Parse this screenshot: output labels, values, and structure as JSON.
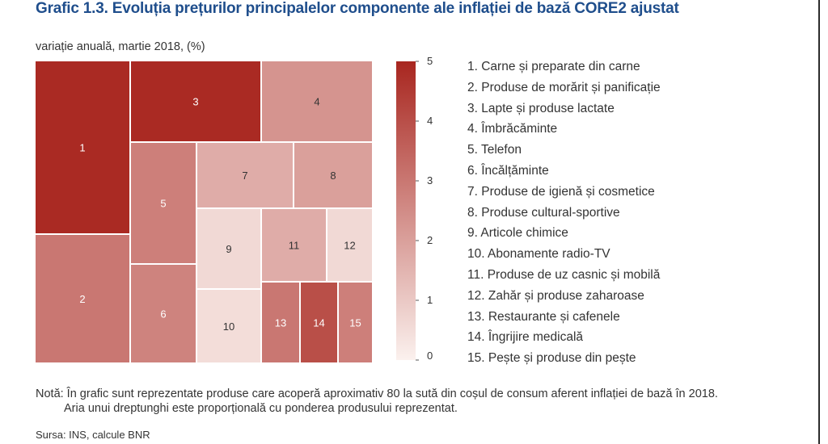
{
  "title": "Grafic 1.3. Evoluția prețurilor principalelor componente ale inflației de bază CORE2 ajustat",
  "subtitle": "variație anuală, martie 2018, (%)",
  "chart_data": {
    "type": "treemap",
    "title": "Grafic 1.3. Evoluția prețurilor principalelor componente ale inflației de bază CORE2 ajustat",
    "ylabel": "variație anuală, martie 2018, (%)",
    "colorscale": {
      "min": 0,
      "max": 5,
      "ticks": [
        0,
        1,
        2,
        3,
        4,
        5
      ],
      "low_color": "#fbf1ee",
      "high_color": "#a8261f"
    },
    "cells": [
      {
        "id": 1,
        "name": "Carne și preparate din carne",
        "value": 4.9
      },
      {
        "id": 2,
        "name": "Produse de morărit și panificație",
        "value": 3.0
      },
      {
        "id": 3,
        "name": "Lapte și produse lactate",
        "value": 4.9
      },
      {
        "id": 4,
        "name": "Îmbrăcăminte",
        "value": 2.3
      },
      {
        "id": 5,
        "name": "Telefon",
        "value": 2.8
      },
      {
        "id": 6,
        "name": "Încălțăminte",
        "value": 2.7
      },
      {
        "id": 7,
        "name": "Produse de igienă și cosmetice",
        "value": 1.7
      },
      {
        "id": 8,
        "name": "Produse cultural-sportive",
        "value": 2.0
      },
      {
        "id": 9,
        "name": "Articole chimice",
        "value": 0.6
      },
      {
        "id": 10,
        "name": "Abonamente radio-TV",
        "value": 0.5
      },
      {
        "id": 11,
        "name": "Produse de uz casnic și mobilă",
        "value": 1.7
      },
      {
        "id": 12,
        "name": "Zahăr și produse zaharoase",
        "value": 0.6
      },
      {
        "id": 13,
        "name": "Restaurante și cafenele",
        "value": 3.0
      },
      {
        "id": 14,
        "name": "Îngrijire medicală",
        "value": 4.0
      },
      {
        "id": 15,
        "name": "Pește și produse din pește",
        "value": 2.8
      }
    ]
  },
  "legend": [
    "1. Carne și preparate din carne",
    "2. Produse de morărit și panificație",
    "3. Lapte și produse lactate",
    "4. Îmbrăcăminte",
    "5. Telefon",
    "6. Încălțăminte",
    "7. Produse de igienă și cosmetice",
    "8. Produse cultural-sportive",
    "9. Articole chimice",
    "10. Abonamente radio-TV",
    "11. Produse de uz casnic și mobilă",
    "12. Zahăr și produse zaharoase",
    "13. Restaurante și cafenele",
    "14. Îngrijire medicală",
    "15. Pește și produse din pește"
  ],
  "note": {
    "line1": "Notă: În grafic sunt reprezentate produse care acoperă aproximativ 80 la sută din coșul de consum aferent inflației de bază în 2018.",
    "line2": "Aria unui dreptunghi este proporțională cu ponderea produsului reprezentat."
  },
  "source": "Sursa: INS, calcule BNR"
}
